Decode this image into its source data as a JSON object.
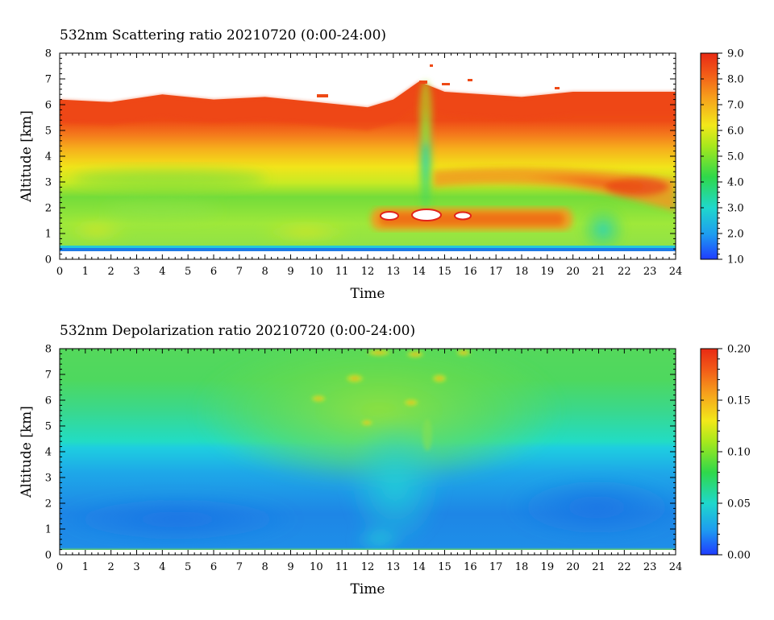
{
  "chart_data": [
    {
      "type": "heatmap",
      "title": "532nm Scattering ratio  20210720 (0:00-24:00)",
      "xlabel": "Time",
      "ylabel": "Altitude [km]",
      "xlim": [
        0,
        24
      ],
      "ylim": [
        0,
        8
      ],
      "xticks": [
        "0",
        "1",
        "2",
        "3",
        "4",
        "5",
        "6",
        "7",
        "8",
        "9",
        "10",
        "11",
        "12",
        "13",
        "14",
        "15",
        "16",
        "17",
        "18",
        "19",
        "20",
        "21",
        "22",
        "23",
        "24"
      ],
      "yticks": [
        "0",
        "1",
        "2",
        "3",
        "4",
        "5",
        "6",
        "7",
        "8"
      ],
      "colorbar": {
        "range": [
          1.0,
          9.0
        ],
        "ticks": [
          "1.0",
          "2.0",
          "3.0",
          "4.0",
          "5.0",
          "6.0",
          "7.0",
          "8.0",
          "9.0"
        ]
      },
      "colors": {
        "low": "#1f3cff",
        "mid": "#28d23c",
        "high": "#f02814"
      },
      "approx_cloud_top_km": [
        {
          "time": 0,
          "alt": 6.2
        },
        {
          "time": 2,
          "alt": 6.1
        },
        {
          "time": 4,
          "alt": 6.4
        },
        {
          "time": 6,
          "alt": 6.2
        },
        {
          "time": 8,
          "alt": 6.3
        },
        {
          "time": 10,
          "alt": 6.1
        },
        {
          "time": 12,
          "alt": 5.9
        },
        {
          "time": 13,
          "alt": 6.2
        },
        {
          "time": 14,
          "alt": 6.9
        },
        {
          "time": 15,
          "alt": 6.5
        },
        {
          "time": 18,
          "alt": 6.3
        },
        {
          "time": 20,
          "alt": 6.5
        },
        {
          "time": 24,
          "alt": 6.5
        }
      ]
    },
    {
      "type": "heatmap",
      "title": "532nm Depolarization ratio  20210720 (0:00-24:00)",
      "xlabel": "Time",
      "ylabel": "Altitude [km]",
      "xlim": [
        0,
        24
      ],
      "ylim": [
        0,
        8
      ],
      "xticks": [
        "0",
        "1",
        "2",
        "3",
        "4",
        "5",
        "6",
        "7",
        "8",
        "9",
        "10",
        "11",
        "12",
        "13",
        "14",
        "15",
        "16",
        "17",
        "18",
        "19",
        "20",
        "21",
        "22",
        "23",
        "24"
      ],
      "yticks": [
        "0",
        "1",
        "2",
        "3",
        "4",
        "5",
        "6",
        "7",
        "8"
      ],
      "colorbar": {
        "range": [
          0.0,
          0.2
        ],
        "ticks": [
          "0.00",
          "0.05",
          "0.10",
          "0.15",
          "0.20"
        ]
      },
      "colors": {
        "low": "#1f3cff",
        "mid": "#28d23c",
        "high": "#f02814"
      }
    }
  ]
}
